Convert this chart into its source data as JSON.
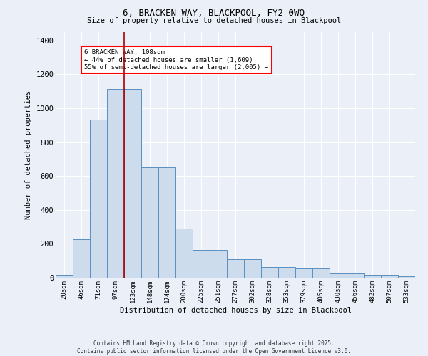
{
  "title": "6, BRACKEN WAY, BLACKPOOL, FY2 0WQ",
  "subtitle": "Size of property relative to detached houses in Blackpool",
  "xlabel": "Distribution of detached houses by size in Blackpool",
  "ylabel": "Number of detached properties",
  "bar_color": "#ccdcec",
  "bar_edge_color": "#5a8fc0",
  "categories": [
    "20sqm",
    "46sqm",
    "71sqm",
    "97sqm",
    "123sqm",
    "148sqm",
    "174sqm",
    "200sqm",
    "225sqm",
    "251sqm",
    "277sqm",
    "302sqm",
    "328sqm",
    "353sqm",
    "379sqm",
    "405sqm",
    "430sqm",
    "456sqm",
    "482sqm",
    "507sqm",
    "533sqm"
  ],
  "values": [
    15,
    225,
    935,
    1115,
    1115,
    650,
    650,
    290,
    165,
    165,
    110,
    110,
    65,
    65,
    55,
    55,
    25,
    25,
    15,
    15,
    8
  ],
  "ylim": [
    0,
    1450
  ],
  "yticks": [
    0,
    200,
    400,
    600,
    800,
    1000,
    1200,
    1400
  ],
  "annotation_text": "6 BRACKEN WAY: 108sqm\n← 44% of detached houses are smaller (1,609)\n55% of semi-detached houses are larger (2,005) →",
  "red_line_x": 4,
  "bg_color": "#eaeff8",
  "footer_line1": "Contains HM Land Registry data © Crown copyright and database right 2025.",
  "footer_line2": "Contains public sector information licensed under the Open Government Licence v3.0."
}
